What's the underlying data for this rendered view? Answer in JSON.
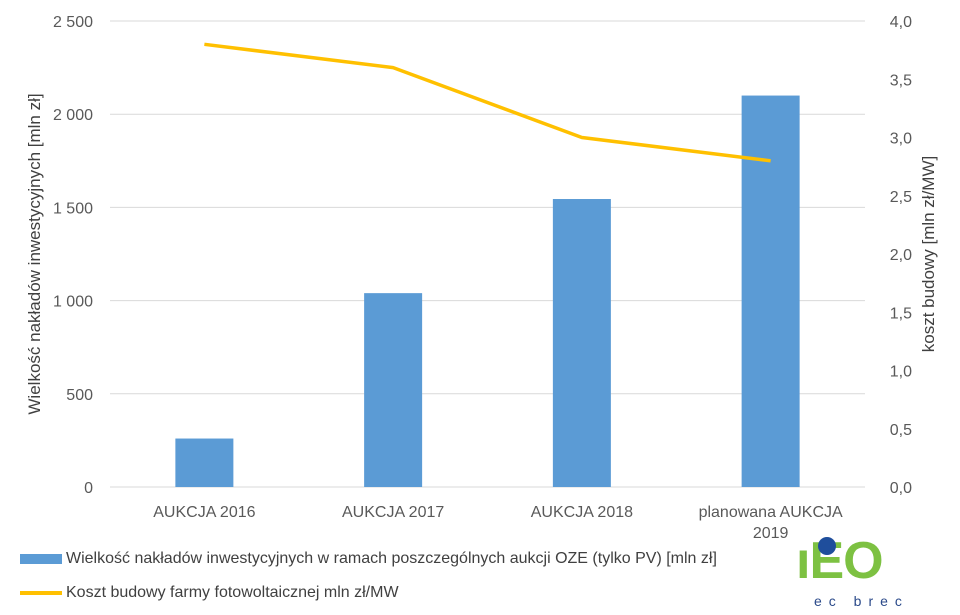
{
  "chart_data": {
    "type": "bar",
    "categories": [
      "AUKCJA 2016",
      "AUKCJA 2017",
      "AUKCJA 2018",
      [
        "planowana AUKCJA",
        "2019"
      ]
    ],
    "series": [
      {
        "name": "Wielkość nakładów inwestycyjnych w ramach poszczególnych aukcji OZE (tylko PV) [mln zł]",
        "type": "bar",
        "axis": "left",
        "values": [
          260,
          1040,
          1545,
          2100
        ],
        "color": "#5b9bd5"
      },
      {
        "name": "Koszt budowy farmy fotowoltaicznej mln zł/MW",
        "type": "line",
        "axis": "right",
        "values": [
          3.8,
          3.6,
          3.0,
          2.8
        ],
        "color": "#ffc000"
      }
    ],
    "ylabel": "Wielkość nakładów inwestycyjnych [mln zł]",
    "y2label": "koszt budowy [mln zł/MW]",
    "ylim": [
      0,
      2500
    ],
    "y2lim": [
      0,
      4.0
    ],
    "yticks": [
      "0",
      "500",
      "1 000",
      "1 500",
      "2 000",
      "2 500"
    ],
    "y2ticks": [
      "0,0",
      "0,5",
      "1,0",
      "1,5",
      "2,0",
      "2,5",
      "3,0",
      "3,5",
      "4,0"
    ],
    "grid": true,
    "legend": "bottom-left"
  },
  "logo": {
    "text": "iEO",
    "subtitle": "ec brec",
    "green": "#7dc142",
    "blue": "#1f4e9c"
  }
}
